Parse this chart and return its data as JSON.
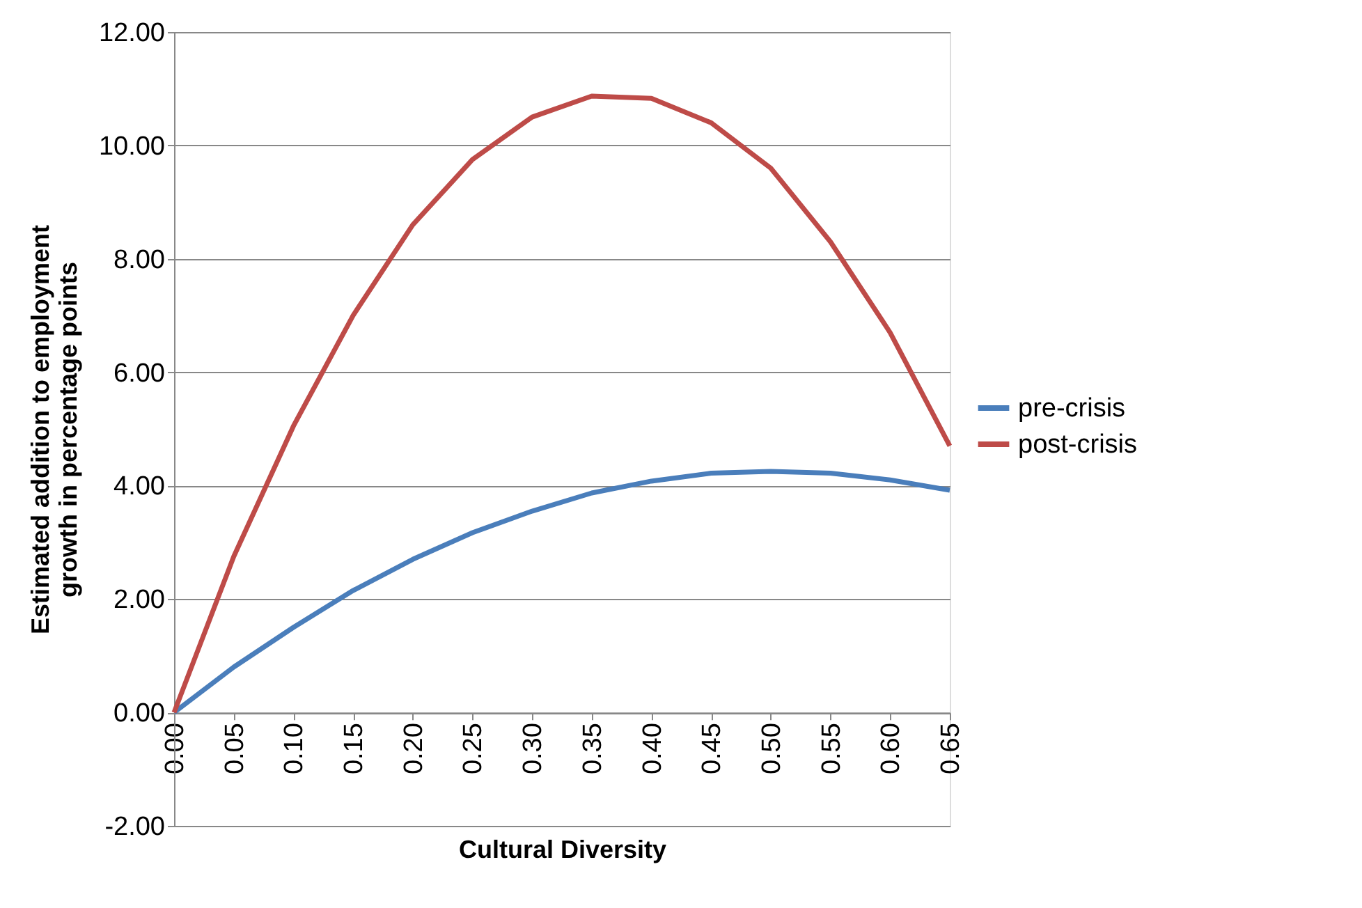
{
  "chart_data": {
    "type": "line",
    "xlabel": "Cultural Diversity",
    "ylabel": "Estimated addition to employment growth in percentage points",
    "categories": [
      "0.00",
      "0.05",
      "0.10",
      "0.15",
      "0.20",
      "0.25",
      "0.30",
      "0.35",
      "0.40",
      "0.45",
      "0.50",
      "0.55",
      "0.60",
      "0.65"
    ],
    "series": [
      {
        "name": "pre-crisis",
        "color": "#4a7ebb",
        "values": [
          0,
          0.8,
          1.5,
          2.15,
          2.7,
          3.17,
          3.55,
          3.87,
          4.08,
          4.22,
          4.25,
          4.22,
          4.1,
          3.92
        ]
      },
      {
        "name": "post-crisis",
        "color": "#be4b48",
        "values": [
          0,
          2.75,
          5.05,
          7.0,
          8.6,
          9.75,
          10.5,
          10.87,
          10.83,
          10.4,
          9.6,
          8.3,
          6.7,
          4.7
        ]
      }
    ],
    "ylim": [
      -2,
      12
    ],
    "yticks": [
      {
        "value": -2,
        "label": "-2.00"
      },
      {
        "value": 0,
        "label": "0.00"
      },
      {
        "value": 2,
        "label": "2.00"
      },
      {
        "value": 4,
        "label": "4.00"
      },
      {
        "value": 6,
        "label": "6.00"
      },
      {
        "value": 8,
        "label": "8.00"
      },
      {
        "value": 10,
        "label": "10.00"
      },
      {
        "value": 12,
        "label": "12.00"
      }
    ],
    "grid": "y",
    "legend": "right",
    "marker": "none",
    "line_style": "solid"
  }
}
